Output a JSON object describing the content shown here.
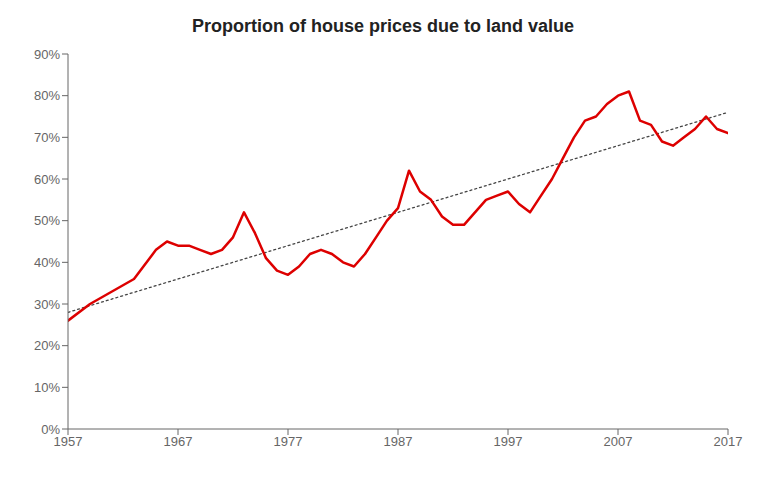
{
  "chart_data": {
    "type": "line",
    "title": "Proportion of house prices due to land value",
    "x": [
      1957,
      1959,
      1961,
      1963,
      1965,
      1966,
      1967,
      1968,
      1969,
      1970,
      1971,
      1972,
      1973,
      1974,
      1975,
      1976,
      1977,
      1978,
      1979,
      1980,
      1981,
      1982,
      1983,
      1984,
      1985,
      1986,
      1987,
      1988,
      1989,
      1990,
      1991,
      1992,
      1993,
      1994,
      1995,
      1996,
      1997,
      1998,
      1999,
      2000,
      2001,
      2002,
      2003,
      2004,
      2005,
      2006,
      2007,
      2008,
      2009,
      2010,
      2011,
      2012,
      2013,
      2014,
      2015,
      2016,
      2017
    ],
    "series": [
      {
        "color": "#dd0000",
        "line_style": "solid",
        "values": [
          0.26,
          0.3,
          0.33,
          0.36,
          0.43,
          0.45,
          0.44,
          0.44,
          0.43,
          0.42,
          0.43,
          0.46,
          0.52,
          0.47,
          0.41,
          0.38,
          0.37,
          0.39,
          0.42,
          0.43,
          0.42,
          0.4,
          0.39,
          0.42,
          0.46,
          0.5,
          0.53,
          0.62,
          0.57,
          0.55,
          0.51,
          0.49,
          0.49,
          0.52,
          0.55,
          0.56,
          0.57,
          0.54,
          0.52,
          0.56,
          0.6,
          0.65,
          0.7,
          0.74,
          0.75,
          0.78,
          0.8,
          0.81,
          0.74,
          0.73,
          0.69,
          0.68,
          0.7,
          0.72,
          0.75,
          0.72,
          0.71
        ]
      },
      {
        "color": "#444444",
        "line_style": "dotted",
        "x": [
          1957,
          2017
        ],
        "values": [
          0.28,
          0.76
        ]
      }
    ],
    "xlim": [
      1957,
      2017
    ],
    "ylim": [
      0.0,
      0.9
    ],
    "xticks": [
      1957,
      1967,
      1977,
      1987,
      1997,
      2007,
      2017
    ],
    "yticks": [
      {
        "value": 0.0,
        "label": "0%"
      },
      {
        "value": 0.1,
        "label": "10%"
      },
      {
        "value": 0.2,
        "label": "20%"
      },
      {
        "value": 0.3,
        "label": "30%"
      },
      {
        "value": 0.4,
        "label": "40%"
      },
      {
        "value": 0.5,
        "label": "50%"
      },
      {
        "value": 0.6,
        "label": "60%"
      },
      {
        "value": 0.7,
        "label": "70%"
      },
      {
        "value": 0.8,
        "label": "80%"
      },
      {
        "value": 0.9,
        "label": "90%"
      }
    ],
    "grid": false
  }
}
